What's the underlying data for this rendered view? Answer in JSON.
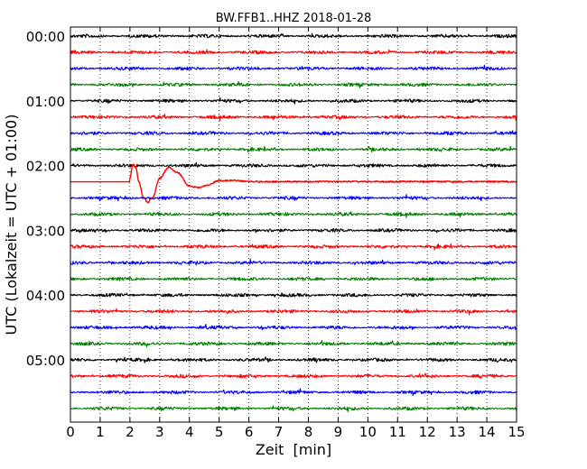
{
  "chart_data": {
    "type": "line",
    "title": "BW.FFB1..HHZ 2018-01-28",
    "xlabel": "Zeit  [min]",
    "ylabel": "UTC (Lokalzeit = UTC + 01:00)",
    "xlim": [
      0,
      15
    ],
    "x_ticks": [
      "0",
      "1",
      "2",
      "3",
      "4",
      "5",
      "6",
      "7",
      "8",
      "9",
      "10",
      "11",
      "12",
      "13",
      "14",
      "15"
    ],
    "y_tick_labels": [
      "00:00",
      "01:00",
      "02:00",
      "03:00",
      "04:00",
      "05:00"
    ],
    "line_interval_minutes": 15,
    "trace_count": 24,
    "trace_colors": [
      "#000000",
      "#ff0000",
      "#0000ff",
      "#008000"
    ],
    "grid": "vertical dotted lines at each minute",
    "series": [
      {
        "hour_start": "02:15",
        "color": "#ff0000",
        "event": "large transient",
        "x": [
          0,
          1.99,
          2.0,
          2.1,
          2.2,
          2.3,
          2.45,
          2.6,
          2.75,
          3.0,
          3.3,
          3.6,
          4.0,
          4.3,
          4.6,
          5.0,
          5.5,
          6.0,
          15
        ],
        "y": [
          0,
          0,
          0.55,
          2.55,
          2.1,
          0.0,
          -2.3,
          -3.0,
          -2.4,
          0.5,
          2.1,
          1.3,
          -0.6,
          -0.85,
          -0.5,
          0.15,
          0.2,
          0.02,
          0.02
        ]
      }
    ]
  }
}
